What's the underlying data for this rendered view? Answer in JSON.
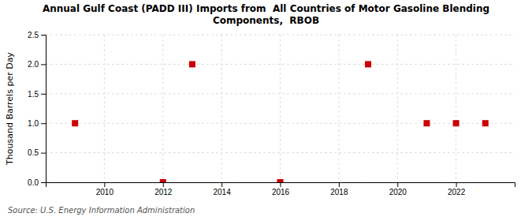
{
  "chart_data": {
    "type": "scatter",
    "title": "Annual Gulf Coast (PADD III) Imports from  All Countries of Motor Gasoline Blending\nComponents,  RBOB",
    "ylabel": "Thousand Barrels per Day",
    "source": "Source: U.S. Energy Information Administration",
    "x": [
      2009,
      2012,
      2013,
      2016,
      2019,
      2021,
      2022,
      2023
    ],
    "values": [
      1.0,
      0.0,
      2.0,
      0.0,
      2.0,
      1.0,
      1.0,
      1.0
    ],
    "color": "#cc0000",
    "marker": "square",
    "xlim": [
      2008.0,
      2024.0
    ],
    "xticks": [
      2010,
      2012,
      2014,
      2016,
      2018,
      2020,
      2022
    ],
    "ylim": [
      0.0,
      2.5
    ],
    "yticks": [
      {
        "value": 0.0,
        "label": "0.0"
      },
      0.5,
      {
        "value": 1.0,
        "label": "1.0"
      },
      1.5,
      {
        "value": 2.0,
        "label": "2.0"
      },
      2.5
    ],
    "grid": true
  }
}
